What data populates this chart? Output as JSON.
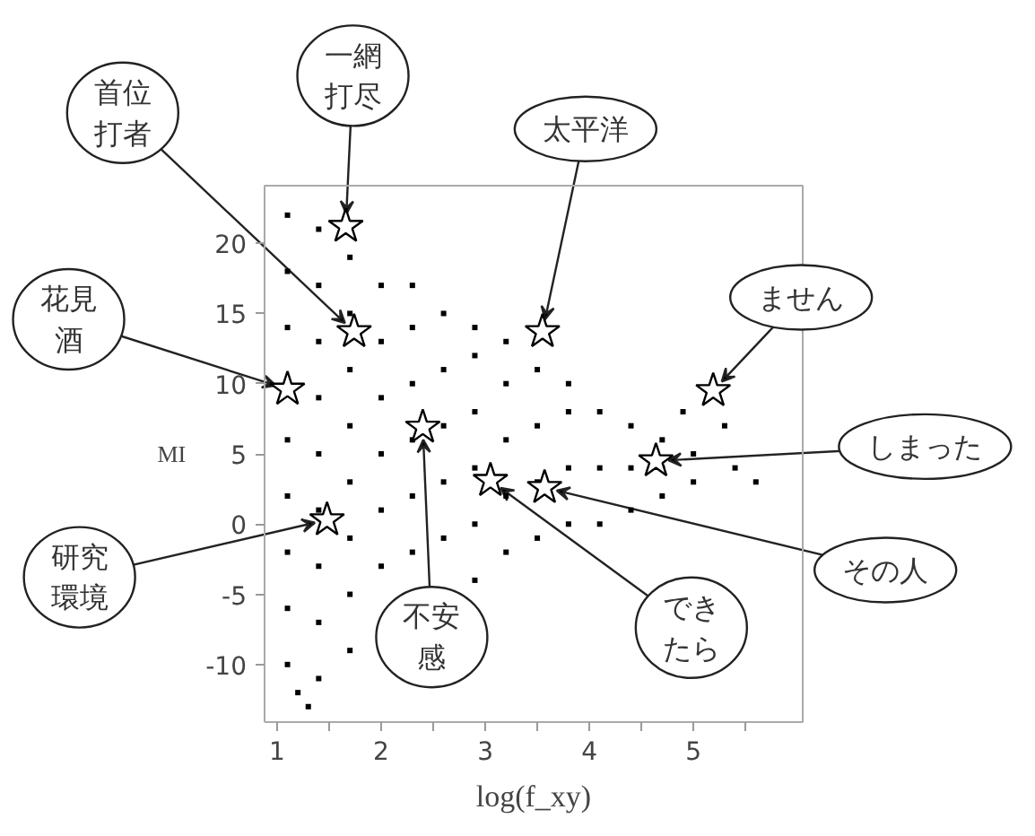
{
  "chart_data": {
    "type": "scatter",
    "xlabel": "log(f_xy)",
    "ylabel": "MI",
    "xlim": [
      0.88,
      6.05
    ],
    "ylim": [
      -14.1,
      24.1
    ],
    "xticks": [
      1,
      {
        "value": 1.5,
        "label": null
      },
      2,
      {
        "value": 2.5,
        "label": null
      },
      3,
      {
        "value": 3.5,
        "label": null
      },
      4,
      {
        "value": 4.5,
        "label": null
      },
      5,
      {
        "value": 5.5,
        "label": null
      }
    ],
    "yticks": [
      -10,
      -5,
      0,
      5,
      10,
      15,
      20
    ],
    "grid": false,
    "series": [
      {
        "marker": "square",
        "color": "#000000",
        "x": [
          1.1,
          1.1,
          1.1,
          1.1,
          1.1,
          1.1,
          1.1,
          1.1,
          1.4,
          1.4,
          1.4,
          1.4,
          1.4,
          1.4,
          1.4,
          1.4,
          1.4,
          1.7,
          1.7,
          1.7,
          1.7,
          1.7,
          1.7,
          1.7,
          1.7,
          2.0,
          2.0,
          2.0,
          2.0,
          2.0,
          2.0,
          2.3,
          2.3,
          2.3,
          2.3,
          2.3,
          2.3,
          2.6,
          2.6,
          2.6,
          2.6,
          2.6,
          2.9,
          2.9,
          2.9,
          2.9,
          2.9,
          2.9,
          3.2,
          3.2,
          3.2,
          3.2,
          3.2,
          3.5,
          3.5,
          3.5,
          3.5,
          3.8,
          3.8,
          3.8,
          3.8,
          4.1,
          4.1,
          4.1,
          4.4,
          4.4,
          4.4,
          4.7,
          4.7,
          4.7,
          5.0,
          5.0,
          5.4,
          5.6,
          5.3,
          4.9,
          1.3,
          1.2
        ],
        "values": [
          -10,
          -6,
          -2,
          2,
          6,
          14,
          18,
          22,
          -11,
          -7,
          -3,
          1,
          5,
          9,
          13,
          17,
          21,
          -9,
          -5,
          -1,
          3,
          7,
          11,
          15,
          19,
          -3,
          1,
          5,
          9,
          13,
          17,
          -2,
          2,
          6,
          10,
          14,
          17,
          -1,
          3,
          7,
          11,
          15,
          -4,
          0,
          4,
          8,
          12,
          14,
          -2,
          2,
          6,
          10,
          13,
          -1,
          3,
          7,
          11,
          0,
          4,
          8,
          10,
          0,
          4,
          8,
          1,
          4,
          7,
          2,
          4,
          6,
          3,
          5,
          4,
          3,
          7,
          8,
          -13,
          -12
        ]
      },
      {
        "marker": "star",
        "color": "#ffffff",
        "x": [
          1.74,
          1.66,
          1.1,
          1.48,
          2.4,
          3.05,
          3.57,
          4.64,
          5.19,
          3.55
        ],
        "values": [
          13.7,
          21.2,
          9.6,
          0.3,
          6.9,
          3.1,
          2.6,
          4.5,
          9.5,
          13.7
        ]
      }
    ],
    "annotations": [
      {
        "text": "首位打者",
        "x": 1.74,
        "y": 13.7
      },
      {
        "text": "一網打尽",
        "x": 1.66,
        "y": 21.2
      },
      {
        "text": "花見酒",
        "x": 1.1,
        "y": 9.6
      },
      {
        "text": "研究環境",
        "x": 1.48,
        "y": 0.3
      },
      {
        "text": "不安感",
        "x": 2.4,
        "y": 6.9
      },
      {
        "text": "できたら",
        "x": 3.05,
        "y": 3.1
      },
      {
        "text": "その人",
        "x": 3.57,
        "y": 2.6
      },
      {
        "text": "しまった",
        "x": 4.64,
        "y": 4.5
      },
      {
        "text": "ません",
        "x": 5.19,
        "y": 9.5
      },
      {
        "text": "太平洋",
        "x": 3.55,
        "y": 13.7
      }
    ]
  }
}
